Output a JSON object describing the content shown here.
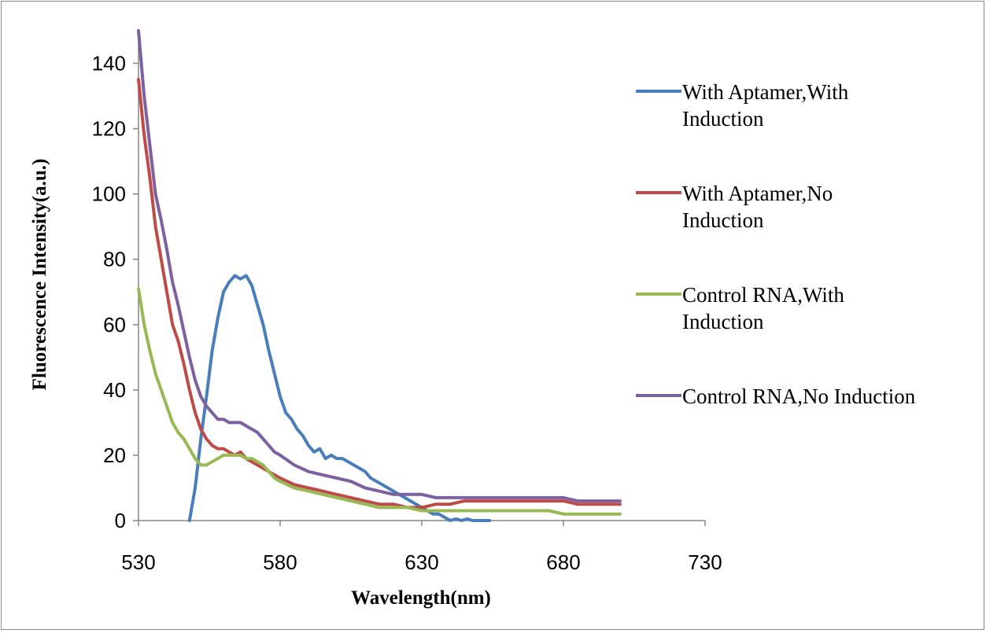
{
  "chart_data": {
    "type": "line",
    "title": "",
    "xlabel": "Wavelength(nm)",
    "ylabel": "Fluorescence Intensity(a.u.)",
    "xlim": [
      530,
      730
    ],
    "ylim": [
      0,
      150
    ],
    "xticks": [
      530,
      580,
      630,
      680,
      730
    ],
    "yticks": [
      0,
      20,
      40,
      60,
      80,
      100,
      120,
      140
    ],
    "grid": false,
    "legend_position": "right",
    "series": [
      {
        "name": "With Aptamer,With Induction",
        "color": "#4a7ebb",
        "x": [
          548,
          550,
          552,
          554,
          556,
          558,
          560,
          562,
          564,
          566,
          568,
          570,
          572,
          574,
          576,
          578,
          580,
          582,
          584,
          586,
          588,
          590,
          592,
          594,
          596,
          598,
          600,
          602,
          604,
          606,
          608,
          610,
          612,
          614,
          616,
          618,
          620,
          622,
          624,
          626,
          628,
          630,
          632,
          634,
          636,
          638,
          640,
          642,
          644,
          646,
          648,
          650,
          652,
          654
        ],
        "y": [
          0,
          10,
          25,
          38,
          52,
          62,
          70,
          73,
          75,
          74,
          75,
          72,
          66,
          60,
          52,
          45,
          38,
          33,
          31,
          28,
          26,
          23,
          21,
          22,
          19,
          20,
          19,
          19,
          18,
          17,
          16,
          15,
          13,
          12,
          11,
          10,
          9,
          8,
          7,
          6,
          5,
          4,
          3,
          2,
          2,
          1,
          0,
          0.5,
          0,
          0.5,
          0,
          0,
          0,
          0
        ]
      },
      {
        "name": "With Aptamer,No Induction",
        "color": "#be4b48",
        "x": [
          530,
          532,
          534,
          536,
          538,
          540,
          542,
          544,
          546,
          548,
          550,
          552,
          554,
          556,
          558,
          560,
          562,
          564,
          566,
          568,
          570,
          572,
          574,
          576,
          578,
          580,
          585,
          590,
          595,
          600,
          605,
          610,
          615,
          620,
          625,
          630,
          635,
          640,
          645,
          650,
          655,
          660,
          665,
          670,
          675,
          680,
          685,
          690,
          695,
          700
        ],
        "y": [
          135,
          118,
          105,
          90,
          80,
          70,
          60,
          55,
          48,
          40,
          33,
          28,
          25,
          23,
          22,
          22,
          21,
          20,
          21,
          19,
          18,
          17,
          16,
          15,
          14,
          13,
          11,
          10,
          9,
          8,
          7,
          6,
          5,
          5,
          4,
          4,
          5,
          5,
          6,
          6,
          6,
          6,
          6,
          6,
          6,
          6,
          5,
          5,
          5,
          5
        ]
      },
      {
        "name": "Control RNA,With Induction",
        "color": "#98b954",
        "x": [
          530,
          532,
          534,
          536,
          538,
          540,
          542,
          544,
          546,
          548,
          550,
          552,
          554,
          556,
          558,
          560,
          562,
          564,
          566,
          568,
          570,
          572,
          574,
          576,
          578,
          580,
          585,
          590,
          595,
          600,
          605,
          610,
          615,
          620,
          625,
          630,
          635,
          640,
          645,
          650,
          655,
          660,
          665,
          670,
          675,
          680,
          685,
          690,
          695,
          700
        ],
        "y": [
          71,
          60,
          52,
          45,
          40,
          35,
          30,
          27,
          25,
          22,
          19,
          17,
          17,
          18,
          19,
          20,
          20,
          20,
          20,
          19,
          19,
          18,
          17,
          15,
          13,
          12,
          10,
          9,
          8,
          7,
          6,
          5,
          4,
          4,
          4,
          3,
          3,
          3,
          3,
          3,
          3,
          3,
          3,
          3,
          3,
          2,
          2,
          2,
          2,
          2
        ]
      },
      {
        "name": "Control RNA,No Induction",
        "color": "#7d60a0",
        "x": [
          530,
          532,
          534,
          536,
          538,
          540,
          542,
          544,
          546,
          548,
          550,
          552,
          554,
          556,
          558,
          560,
          562,
          564,
          566,
          568,
          570,
          572,
          574,
          576,
          578,
          580,
          585,
          590,
          595,
          600,
          605,
          610,
          615,
          620,
          625,
          630,
          635,
          640,
          645,
          650,
          655,
          660,
          665,
          670,
          675,
          680,
          685,
          690,
          695,
          700
        ],
        "y": [
          150,
          130,
          115,
          100,
          92,
          83,
          73,
          66,
          58,
          50,
          43,
          38,
          35,
          33,
          31,
          31,
          30,
          30,
          30,
          29,
          28,
          27,
          25,
          23,
          21,
          20,
          17,
          15,
          14,
          13,
          12,
          10,
          9,
          8,
          8,
          8,
          7,
          7,
          7,
          7,
          7,
          7,
          7,
          7,
          7,
          7,
          6,
          6,
          6,
          6
        ]
      }
    ]
  },
  "legend": {
    "items": [
      {
        "line1": "With Aptamer,With",
        "line2": "Induction"
      },
      {
        "line1": "With Aptamer,No",
        "line2": "Induction"
      },
      {
        "line1": "Control RNA,With",
        "line2": "Induction"
      },
      {
        "line1": "Control RNA,No Induction",
        "line2": ""
      }
    ]
  }
}
